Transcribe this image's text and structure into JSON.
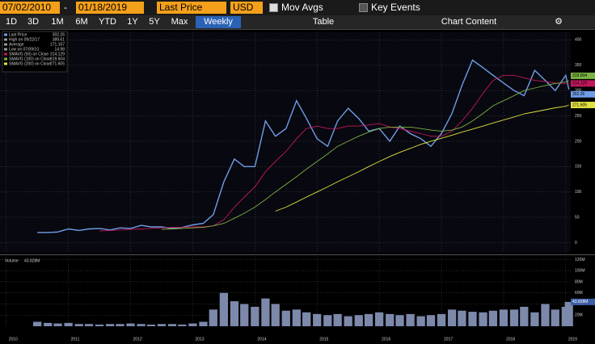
{
  "toolbar": {
    "start_date": "07/02/2010",
    "separator": "-",
    "end_date": "01/18/2019",
    "field": "Last Price",
    "currency": "USD",
    "mov_avgs": "Mov Avgs",
    "key_events": "Key Events",
    "ranges": [
      "1D",
      "3D",
      "1M",
      "6M",
      "YTD",
      "1Y",
      "5Y",
      "Max"
    ],
    "frequency": "Weekly",
    "table": "Table",
    "chart_content": "Chart Content"
  },
  "chart_data": [
    {
      "type": "line",
      "x": [
        2010.5,
        2010.67,
        2010.83,
        2011.0,
        2011.17,
        2011.33,
        2011.5,
        2011.67,
        2011.83,
        2012.0,
        2012.17,
        2012.33,
        2012.5,
        2012.67,
        2012.83,
        2013.0,
        2013.17,
        2013.33,
        2013.5,
        2013.67,
        2013.83,
        2014.0,
        2014.17,
        2014.33,
        2014.5,
        2014.67,
        2014.83,
        2015.0,
        2015.17,
        2015.33,
        2015.5,
        2015.67,
        2015.83,
        2016.0,
        2016.17,
        2016.33,
        2016.5,
        2016.67,
        2016.83,
        2017.0,
        2017.17,
        2017.33,
        2017.5,
        2017.67,
        2017.83,
        2018.0,
        2018.17,
        2018.33,
        2018.5,
        2018.67,
        2018.83,
        2019.0,
        2019.05
      ],
      "series": [
        {
          "name": "Last Price",
          "color": "#6f9ee6",
          "values": [
            20,
            20,
            21,
            27,
            24,
            27,
            28,
            25,
            29,
            28,
            34,
            31,
            31,
            28,
            30,
            35,
            38,
            55,
            120,
            165,
            150,
            150,
            240,
            210,
            225,
            280,
            245,
            205,
            190,
            240,
            265,
            245,
            220,
            225,
            200,
            230,
            215,
            205,
            190,
            215,
            255,
            310,
            360,
            345,
            330,
            315,
            300,
            290,
            340,
            320,
            300,
            330,
            302.26
          ]
        },
        {
          "name": "SMAVG (50) on Close",
          "color": "#c2185b",
          "values": [
            null,
            null,
            null,
            null,
            null,
            null,
            23,
            24,
            25,
            26,
            27,
            28,
            29,
            30,
            30,
            31,
            31,
            33,
            45,
            70,
            90,
            110,
            140,
            160,
            180,
            205,
            225,
            230,
            225,
            225,
            230,
            230,
            232,
            235,
            228,
            225,
            220,
            215,
            210,
            210,
            220,
            240,
            265,
            295,
            320,
            330,
            330,
            325,
            320,
            318,
            315,
            314,
            314.129
          ]
        },
        {
          "name": "SMAVG (100) on Close",
          "color": "#7cb342",
          "values": [
            null,
            null,
            null,
            null,
            null,
            null,
            null,
            null,
            null,
            null,
            null,
            null,
            26,
            27,
            28,
            29,
            30,
            33,
            38,
            48,
            58,
            70,
            85,
            100,
            115,
            130,
            145,
            160,
            175,
            190,
            200,
            210,
            218,
            225,
            228,
            228,
            228,
            225,
            222,
            220,
            222,
            228,
            240,
            255,
            270,
            280,
            290,
            300,
            305,
            310,
            314,
            317,
            319.604
          ]
        },
        {
          "name": "SMAVG (200) on Close",
          "color": "#e0e040",
          "values": [
            null,
            null,
            null,
            null,
            null,
            null,
            null,
            null,
            null,
            null,
            null,
            null,
            null,
            null,
            null,
            null,
            null,
            null,
            null,
            null,
            null,
            null,
            null,
            62,
            70,
            80,
            90,
            100,
            110,
            120,
            130,
            140,
            150,
            160,
            170,
            178,
            186,
            194,
            200,
            206,
            212,
            218,
            224,
            230,
            236,
            242,
            248,
            254,
            258,
            262,
            266,
            269,
            271.605
          ]
        }
      ],
      "stats": [
        {
          "label": "High on 09/22/17",
          "value": 389.61
        },
        {
          "label": "Average",
          "value": 171.167
        },
        {
          "label": "Low on 07/09/10",
          "value": 14.98
        }
      ],
      "xlim": [
        2009.9,
        2019.08
      ],
      "xticks": [
        2010,
        2011,
        2012,
        2013,
        2014,
        2015,
        2016,
        2017,
        2018,
        2019
      ],
      "ylim": [
        -20,
        415
      ],
      "yticks": [
        0,
        50,
        100,
        150,
        200,
        250,
        300,
        350,
        400
      ],
      "grid": true
    },
    {
      "type": "bar",
      "color": "#7d89ab",
      "x": [
        2010.5,
        2010.67,
        2010.83,
        2011.0,
        2011.17,
        2011.33,
        2011.5,
        2011.67,
        2011.83,
        2012.0,
        2012.17,
        2012.33,
        2012.5,
        2012.67,
        2012.83,
        2013.0,
        2013.17,
        2013.33,
        2013.5,
        2013.67,
        2013.83,
        2014.0,
        2014.17,
        2014.33,
        2014.5,
        2014.67,
        2014.83,
        2015.0,
        2015.17,
        2015.33,
        2015.5,
        2015.67,
        2015.83,
        2016.0,
        2016.17,
        2016.33,
        2016.5,
        2016.67,
        2016.83,
        2017.0,
        2017.17,
        2017.33,
        2017.5,
        2017.67,
        2017.83,
        2018.0,
        2018.17,
        2018.33,
        2018.5,
        2018.67,
        2018.83,
        2019.0,
        2019.05
      ],
      "series": [
        {
          "name": "Volume",
          "values": [
            8,
            6,
            5,
            6,
            4,
            4,
            3,
            4,
            4,
            5,
            4,
            3,
            4,
            4,
            3,
            5,
            8,
            30,
            60,
            45,
            40,
            35,
            50,
            40,
            28,
            30,
            25,
            22,
            20,
            22,
            18,
            20,
            22,
            25,
            22,
            20,
            22,
            18,
            20,
            22,
            30,
            28,
            26,
            25,
            28,
            30,
            30,
            35,
            25,
            40,
            30,
            35,
            43.828
          ],
          "value_labels_last": "43.828M"
        }
      ],
      "xlim": [
        2009.9,
        2019.08
      ],
      "xticks": [
        2010,
        2011,
        2012,
        2013,
        2014,
        2015,
        2016,
        2017,
        2018,
        2019
      ],
      "ylim": [
        0,
        125
      ],
      "yticks": [
        {
          "value": 20,
          "label": "20M"
        },
        {
          "value": 40,
          "label": "40M"
        },
        {
          "value": 60,
          "label": "60M"
        },
        {
          "value": 80,
          "label": "80M"
        },
        {
          "value": 100,
          "label": "100M"
        },
        {
          "value": 120,
          "label": "120M"
        }
      ],
      "grid": true
    }
  ]
}
